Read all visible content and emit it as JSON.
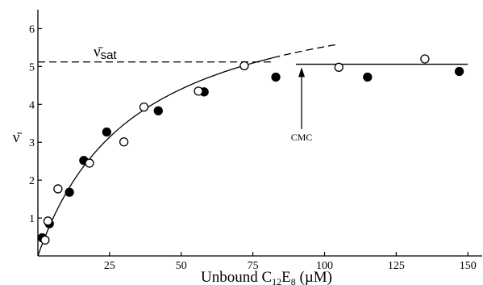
{
  "chart_data": {
    "type": "scatter",
    "title": "",
    "xlabel_parts": [
      "Unbound C",
      "12",
      "E",
      "8",
      " (µM)"
    ],
    "ylabel": "ν̄",
    "xlim": [
      0,
      155
    ],
    "ylim": [
      0,
      6.5
    ],
    "x_ticks": [
      25,
      50,
      75,
      100,
      125,
      150
    ],
    "y_ticks": [
      1,
      2,
      3,
      4,
      5,
      6
    ],
    "grid": false,
    "legend": "none",
    "series": [
      {
        "marker": "filled-circle",
        "color": "#000000",
        "x": [
          1.5,
          4,
          11,
          16,
          24,
          42,
          58,
          83,
          115,
          147
        ],
        "y": [
          0.48,
          0.85,
          1.68,
          2.52,
          3.27,
          3.83,
          4.33,
          4.72,
          4.72,
          4.87
        ]
      },
      {
        "marker": "open-circle",
        "color": "#000000",
        "x": [
          2.5,
          3.5,
          7,
          18,
          30,
          37,
          56,
          72,
          105,
          135
        ],
        "y": [
          0.42,
          0.92,
          1.77,
          2.45,
          3.01,
          3.93,
          4.35,
          5.02,
          4.98,
          5.2
        ]
      }
    ],
    "fit_curve": {
      "vmax": 7.4,
      "k": 34,
      "x_from": 0,
      "x_solid_to": 82,
      "x_dashed_to": 105
    },
    "saturation_line": {
      "y": 5.12,
      "x_dashed_to": 82
    },
    "cmc_line": {
      "y": 5.06,
      "x_from": 90,
      "x_to": 150
    },
    "annotations": {
      "vsat_symbol": "ν̄",
      "vsat_subscript": "sat",
      "cmc_label": "CMC",
      "cmc_x": 92
    }
  }
}
